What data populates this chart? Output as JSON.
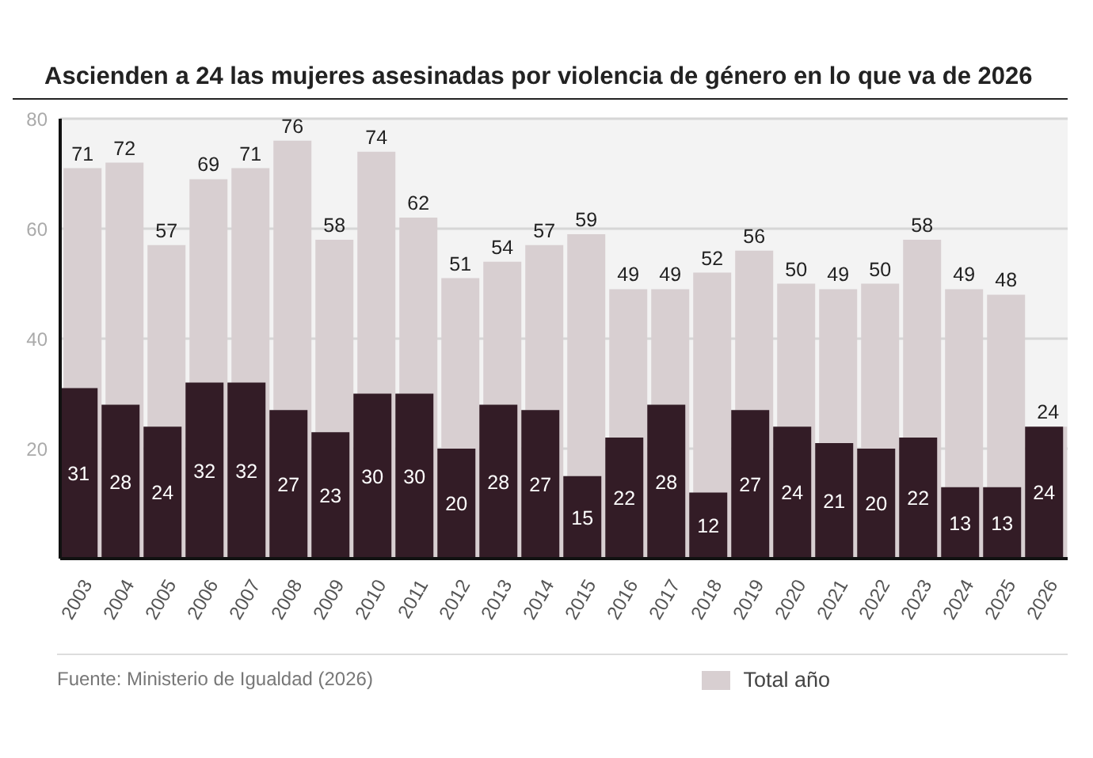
{
  "chart_data": {
    "type": "bar",
    "title": "Ascienden a 24 las mujeres asesinadas por violencia de género en lo que va de 2026",
    "categories": [
      "2003",
      "2004",
      "2005",
      "2006",
      "2007",
      "2008",
      "2009",
      "2010",
      "2011",
      "2012",
      "2013",
      "2014",
      "2015",
      "2016",
      "2017",
      "2018",
      "2019",
      "2020",
      "2021",
      "2022",
      "2023",
      "2024",
      "2025",
      "2026"
    ],
    "series": [
      {
        "name": "Total año",
        "color": "#d8cfd1",
        "values": [
          71,
          72,
          57,
          69,
          71,
          76,
          58,
          74,
          62,
          51,
          54,
          57,
          59,
          49,
          49,
          52,
          56,
          50,
          49,
          50,
          58,
          49,
          48,
          24
        ]
      },
      {
        "color": "#331c26",
        "values": [
          31,
          28,
          24,
          32,
          32,
          27,
          23,
          30,
          30,
          20,
          28,
          27,
          15,
          22,
          28,
          12,
          27,
          24,
          21,
          20,
          22,
          13,
          13,
          24
        ]
      }
    ],
    "ylim": [
      0,
      80
    ],
    "yticks": [
      20,
      40,
      60,
      80
    ],
    "grid": "y",
    "legend": "bottom right",
    "data_labels": true,
    "annotations": [
      "Fuente: Ministerio de Igualdad (2026)"
    ]
  }
}
